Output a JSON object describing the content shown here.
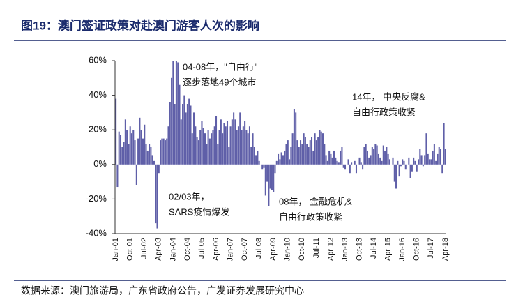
{
  "chart_data": {
    "type": "bar",
    "title": "图19：澳门签证政策对赴澳门游客人次的影响",
    "source": "数据来源：澳门旅游局，广东省政府公告，广发证券发展研究中心",
    "color": "#5f5fa8",
    "ylim": [
      -40,
      60
    ],
    "yticks": [
      {
        "value": -40,
        "label": "-40%"
      },
      {
        "value": -20,
        "label": "-20%"
      },
      {
        "value": 0,
        "label": "0%"
      },
      {
        "value": 20,
        "label": "20%"
      },
      {
        "value": 40,
        "label": "40%"
      },
      {
        "value": 60,
        "label": "60%"
      }
    ],
    "annotations": [
      {
        "text": [
          "04-08年，\"自由行\"",
          "逐步落地49个城市"
        ]
      },
      {
        "text": [
          "14年， 中央反腐&",
          "自由行政策收紧"
        ]
      },
      {
        "text": [
          "02/03年，",
          "SARS疫情爆发"
        ]
      },
      {
        "text": [
          "08年， 金融危机&",
          "自由行政策收紧"
        ]
      }
    ],
    "categories": [
      "Jan-01",
      null,
      null,
      null,
      null,
      null,
      null,
      null,
      null,
      "Oct-01",
      null,
      null,
      null,
      null,
      null,
      null,
      null,
      null,
      "Jul-02",
      null,
      null,
      null,
      null,
      null,
      null,
      null,
      null,
      "Apr-03",
      null,
      null,
      null,
      null,
      null,
      null,
      null,
      null,
      "Jan-04",
      null,
      null,
      null,
      null,
      null,
      null,
      null,
      null,
      "Oct-04",
      null,
      null,
      null,
      null,
      null,
      null,
      null,
      null,
      "Jul-05",
      null,
      null,
      null,
      null,
      null,
      null,
      null,
      null,
      "Apr-06",
      null,
      null,
      null,
      null,
      null,
      null,
      null,
      null,
      "Jan-07",
      null,
      null,
      null,
      null,
      null,
      null,
      null,
      null,
      "Oct-07",
      null,
      null,
      null,
      null,
      null,
      null,
      null,
      null,
      "Jul-08",
      null,
      null,
      null,
      null,
      null,
      null,
      null,
      null,
      "Apr-09",
      null,
      null,
      null,
      null,
      null,
      null,
      null,
      null,
      "Jan-10",
      null,
      null,
      null,
      null,
      null,
      null,
      null,
      null,
      "Oct-10",
      null,
      null,
      null,
      null,
      null,
      null,
      null,
      null,
      "Jul-11",
      null,
      null,
      null,
      null,
      null,
      null,
      null,
      null,
      "Apr-12",
      null,
      null,
      null,
      null,
      null,
      null,
      null,
      null,
      "Jan-13",
      null,
      null,
      null,
      null,
      null,
      null,
      null,
      null,
      "Oct-13",
      null,
      null,
      null,
      null,
      null,
      null,
      null,
      null,
      "Jul-14",
      null,
      null,
      null,
      null,
      null,
      null,
      null,
      null,
      "Apr-15",
      null,
      null,
      null,
      null,
      null,
      null,
      null,
      null,
      "Jan-16",
      null,
      null,
      null,
      null,
      null,
      null,
      null,
      null,
      "Oct-16",
      null,
      null,
      null,
      null,
      null,
      null,
      null,
      null,
      "Jul-17",
      null,
      null,
      null,
      null,
      null,
      null,
      null,
      null,
      "Apr-18"
    ],
    "values": [
      38,
      -13,
      19,
      17,
      10,
      13,
      26,
      20,
      12,
      22,
      18,
      20,
      14,
      -12,
      15,
      27,
      20,
      15,
      23,
      12,
      8,
      12,
      10,
      5,
      2,
      -34,
      -37,
      -5,
      14,
      15,
      15,
      14,
      15,
      22,
      36,
      50,
      60,
      35,
      60,
      59,
      46,
      26,
      35,
      40,
      30,
      35,
      38,
      34,
      18,
      30,
      22,
      16,
      14,
      20,
      25,
      21,
      18,
      12,
      20,
      15,
      18,
      20,
      22,
      28,
      12,
      20,
      26,
      18,
      24,
      22,
      25,
      10,
      22,
      26,
      30,
      26,
      20,
      22,
      30,
      20,
      22,
      25,
      20,
      18,
      22,
      10,
      18,
      10,
      5,
      8,
      2,
      0,
      -3,
      -2,
      -18,
      -10,
      -24,
      -14,
      -15,
      -16,
      -5,
      2,
      6,
      3,
      7,
      5,
      8,
      12,
      14,
      3,
      10,
      18,
      32,
      30,
      14,
      10,
      14,
      12,
      18,
      16,
      12,
      10,
      14,
      16,
      8,
      18,
      14,
      16,
      20,
      19,
      18,
      12,
      5,
      2,
      8,
      6,
      4,
      8,
      4,
      2,
      1,
      8,
      10,
      -2,
      -3,
      0,
      3,
      -5,
      1,
      0,
      2,
      -5,
      0,
      4,
      1,
      -3,
      10,
      12,
      8,
      4,
      5,
      10,
      9,
      12,
      11,
      6,
      4,
      2,
      11,
      8,
      10,
      6,
      3,
      0,
      4,
      -10,
      -14,
      2,
      -7,
      -1,
      3,
      2,
      -3,
      0,
      4,
      -8,
      -4,
      4,
      2,
      -4,
      3,
      9,
      5,
      -1,
      5,
      18,
      6,
      3,
      3,
      8,
      12,
      2,
      6,
      10,
      9,
      -5,
      24,
      9
    ]
  }
}
